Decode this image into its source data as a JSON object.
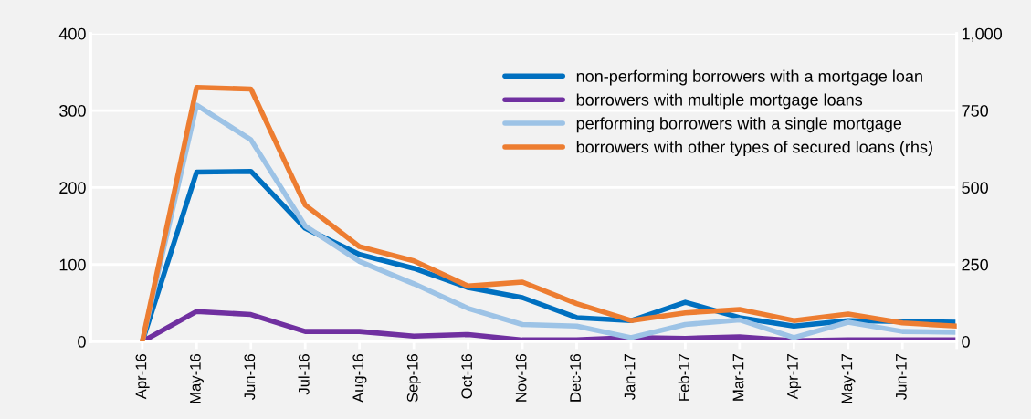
{
  "chart_data": {
    "type": "line",
    "categories": [
      "Apr-16",
      "May-16",
      "Jun-16",
      "Jul-16",
      "Aug-16",
      "Sep-16",
      "Oct-16",
      "Nov-16",
      "Dec-16",
      "Jan-17",
      "Feb-17",
      "Mar-17",
      "Apr-17",
      "May-17",
      "Jun-17",
      null
    ],
    "series": [
      {
        "name": "non-performing borrowers with a mortgage loan",
        "color": "#0070c0",
        "values": [
          0,
          220,
          221,
          147,
          113,
          95,
          70,
          57,
          31,
          27,
          51,
          31,
          20,
          27,
          26,
          25
        ]
      },
      {
        "name": "borrowers with multiple mortgage loans",
        "color": "#7030a0",
        "values": [
          0,
          39,
          35,
          13,
          13,
          7,
          9,
          2,
          2,
          5,
          4,
          6,
          1,
          2,
          2,
          2
        ]
      },
      {
        "name": "performing borrowers with a single mortgage",
        "color": "#9dc3e6",
        "values": [
          0,
          307,
          262,
          150,
          104,
          75,
          43,
          22,
          20,
          5,
          22,
          28,
          5,
          25,
          13,
          12
        ]
      },
      {
        "name": "borrowers with other types of secured loans (rhs)",
        "color": "#ed7d31",
        "axis": "y2",
        "values": [
          0,
          825,
          820,
          443,
          308,
          262,
          180,
          193,
          123,
          68,
          93,
          104,
          68,
          89,
          60,
          50
        ]
      }
    ],
    "ylim": [
      0,
      400
    ],
    "yticks": [
      0,
      100,
      200,
      300,
      400
    ],
    "y2lim": [
      0,
      1000
    ],
    "y2ticks": [
      0,
      250,
      500,
      750,
      {
        "value": 1000,
        "label": "1,000"
      }
    ],
    "grid": "y",
    "legend": "top right",
    "marker": "none",
    "line_style": "solid"
  }
}
